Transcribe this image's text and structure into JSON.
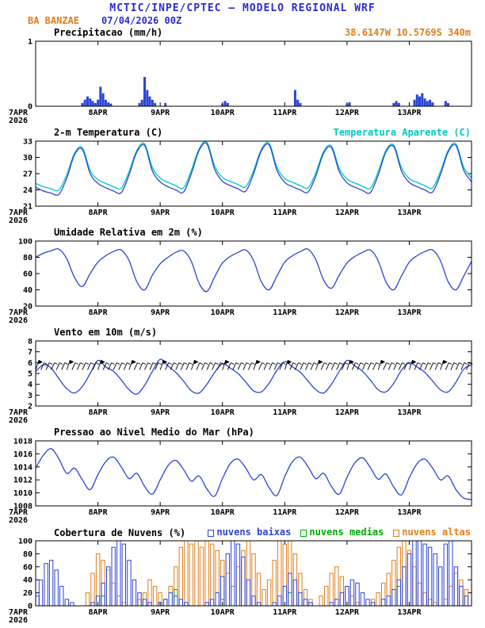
{
  "header": {
    "title": "MCTIC/INPE/CPTEC — MODELO REGIONAL WRF",
    "station": "BA BANZAE",
    "run": "07/04/2026 00Z",
    "coords": "38.6147W 10.5769S 340m"
  },
  "colors": {
    "title_blue": "#2b2bd0",
    "orange": "#e07d1a",
    "cyan": "#00c8c0",
    "line_blue": "#2b44d4",
    "green": "#00a800",
    "axis": "#000000"
  },
  "x_axis": {
    "hours_total": 168,
    "tick_hours": [
      0,
      24,
      48,
      72,
      96,
      120,
      144
    ],
    "tick_labels": [
      "7APR",
      "8APR",
      "9APR",
      "10APR",
      "11APR",
      "12APR",
      "13APR"
    ],
    "year_label": "2026"
  },
  "chart_data": [
    {
      "id": "precipitation",
      "type": "bar",
      "title": "Precipitacao (mm/h)",
      "ylim": [
        0,
        1
      ],
      "yticks": [
        0,
        1
      ],
      "series": [
        {
          "name": "precipitacao",
          "kind": "bars",
          "color": "line_blue",
          "points": [
            [
              18,
              0.05
            ],
            [
              19,
              0.1
            ],
            [
              20,
              0.15
            ],
            [
              21,
              0.12
            ],
            [
              22,
              0.08
            ],
            [
              23,
              0.05
            ],
            [
              24,
              0.1
            ],
            [
              25,
              0.3
            ],
            [
              26,
              0.2
            ],
            [
              27,
              0.1
            ],
            [
              28,
              0.06
            ],
            [
              29,
              0.04
            ],
            [
              40,
              0.05
            ],
            [
              41,
              0.1
            ],
            [
              42,
              0.45
            ],
            [
              43,
              0.25
            ],
            [
              44,
              0.15
            ],
            [
              45,
              0.1
            ],
            [
              46,
              0.05
            ],
            [
              50,
              0.05
            ],
            [
              72,
              0.04
            ],
            [
              73,
              0.08
            ],
            [
              74,
              0.05
            ],
            [
              100,
              0.25
            ],
            [
              101,
              0.1
            ],
            [
              102,
              0.05
            ],
            [
              120,
              0.04
            ],
            [
              121,
              0.06
            ],
            [
              138,
              0.05
            ],
            [
              139,
              0.08
            ],
            [
              140,
              0.05
            ],
            [
              146,
              0.1
            ],
            [
              147,
              0.18
            ],
            [
              148,
              0.15
            ],
            [
              149,
              0.2
            ],
            [
              150,
              0.12
            ],
            [
              151,
              0.08
            ],
            [
              152,
              0.1
            ],
            [
              153,
              0.06
            ],
            [
              158,
              0.08
            ],
            [
              159,
              0.05
            ]
          ]
        }
      ]
    },
    {
      "id": "temperature-2m",
      "type": "line",
      "title": "2-m Temperatura (C)",
      "right_label": "Temperatura Aparente (C)",
      "ylim": [
        21,
        33
      ],
      "yticks": [
        21,
        24,
        27,
        30,
        33
      ],
      "series": [
        {
          "name": "temperatura-aparente",
          "kind": "line",
          "color": "cyan",
          "dt": 3,
          "values": [
            25.2,
            24.6,
            24.2,
            24.0,
            26.8,
            30.8,
            31.8,
            27.6,
            25.9,
            25.2,
            24.6,
            24.3,
            27.4,
            31.3,
            32.5,
            28.1,
            26.2,
            25.4,
            24.8,
            24.4,
            27.6,
            31.6,
            32.8,
            28.4,
            26.3,
            25.6,
            25.0,
            24.6,
            27.6,
            31.5,
            32.6,
            28.2,
            26.1,
            25.4,
            24.8,
            24.4,
            27.2,
            31.1,
            32.1,
            28.0,
            26.0,
            25.3,
            24.7,
            24.3,
            27.3,
            31.3,
            32.3,
            28.1,
            26.1,
            25.4,
            24.8,
            24.4,
            27.4,
            31.3,
            32.5,
            28.2,
            26.2
          ]
        },
        {
          "name": "temperatura-2m",
          "kind": "line",
          "color": "line_blue",
          "dt": 3,
          "values": [
            24.5,
            23.8,
            23.4,
            23.2,
            26.2,
            30.5,
            31.5,
            27.0,
            25.2,
            24.4,
            23.8,
            23.5,
            26.8,
            31.0,
            32.2,
            27.5,
            25.5,
            24.6,
            24.0,
            23.6,
            27.0,
            31.3,
            32.5,
            27.8,
            25.6,
            24.8,
            24.2,
            23.8,
            27.0,
            31.2,
            32.3,
            27.6,
            25.4,
            24.6,
            24.0,
            23.6,
            26.6,
            30.8,
            31.8,
            27.4,
            25.3,
            24.5,
            23.9,
            23.5,
            26.7,
            31.0,
            32.0,
            27.5,
            25.4,
            24.6,
            24.0,
            23.6,
            26.8,
            31.0,
            32.2,
            27.6,
            25.5
          ]
        }
      ]
    },
    {
      "id": "relative-humidity-2m",
      "type": "line",
      "title": "Umidade Relativa em 2m (%)",
      "ylim": [
        20,
        100
      ],
      "yticks": [
        20,
        40,
        60,
        80,
        100
      ],
      "series": [
        {
          "name": "umidade-relativa",
          "kind": "line",
          "color": "line_blue",
          "dt": 3,
          "values": [
            80,
            85,
            88,
            90,
            78,
            55,
            44,
            60,
            74,
            82,
            87,
            89,
            76,
            50,
            40,
            58,
            72,
            80,
            86,
            88,
            75,
            48,
            38,
            56,
            73,
            81,
            86,
            89,
            76,
            50,
            40,
            57,
            74,
            82,
            87,
            90,
            77,
            52,
            42,
            58,
            73,
            81,
            86,
            89,
            76,
            50,
            40,
            57,
            74,
            82,
            87,
            89,
            76,
            50,
            40,
            57,
            75
          ]
        }
      ]
    },
    {
      "id": "wind-10m",
      "type": "line",
      "title": "Vento em 10m (m/s)",
      "ylim": [
        2,
        8
      ],
      "yticks": [
        2,
        3,
        4,
        5,
        6,
        7,
        8
      ],
      "barbs": {
        "level": 5.55,
        "dt": 2
      },
      "series": [
        {
          "name": "vento-10m",
          "kind": "line",
          "color": "line_blue",
          "dt": 3,
          "values": [
            5.2,
            5.8,
            5.5,
            4.5,
            3.6,
            3.2,
            3.8,
            5.0,
            6.2,
            5.6,
            5.2,
            4.4,
            3.5,
            3.1,
            3.9,
            5.2,
            6.3,
            5.7,
            5.1,
            4.3,
            3.4,
            3.2,
            4.0,
            5.1,
            5.9,
            5.5,
            5.0,
            4.2,
            3.4,
            3.3,
            4.1,
            5.3,
            6.1,
            5.6,
            5.1,
            4.3,
            3.5,
            3.2,
            4.0,
            5.2,
            6.2,
            5.7,
            5.2,
            4.4,
            3.5,
            3.3,
            4.1,
            5.3,
            6.0,
            5.6,
            5.1,
            4.3,
            3.5,
            3.3,
            4.2,
            5.4,
            5.8
          ]
        }
      ]
    },
    {
      "id": "mslp",
      "type": "line",
      "title": "Pressao ao Nivel Medio do Mar (hPa)",
      "ylim": [
        1008,
        1018
      ],
      "yticks": [
        1008,
        1010,
        1012,
        1014,
        1016,
        1018
      ],
      "series": [
        {
          "name": "pressao-nmm",
          "kind": "line",
          "color": "line_blue",
          "dt": 3,
          "values": [
            1013.8,
            1015.8,
            1016.8,
            1015.2,
            1013.0,
            1013.8,
            1012.0,
            1010.5,
            1012.8,
            1014.8,
            1015.5,
            1014.0,
            1012.2,
            1013.0,
            1011.0,
            1009.8,
            1012.0,
            1014.2,
            1015.0,
            1013.6,
            1011.8,
            1012.6,
            1010.6,
            1009.5,
            1012.2,
            1014.5,
            1015.2,
            1013.8,
            1012.0,
            1012.8,
            1010.8,
            1009.6,
            1012.5,
            1014.8,
            1015.5,
            1014.0,
            1012.2,
            1013.0,
            1011.0,
            1009.8,
            1012.4,
            1014.6,
            1015.4,
            1013.9,
            1012.1,
            1012.9,
            1010.9,
            1009.7,
            1012.3,
            1014.5,
            1015.2,
            1013.8,
            1012.0,
            1012.6,
            1010.5,
            1009.2,
            1009.0
          ]
        }
      ]
    },
    {
      "id": "cloud-cover",
      "type": "bar",
      "title": "Cobertura de Nuvens (%)",
      "ylim": [
        0,
        100
      ],
      "yticks": [
        0,
        20,
        40,
        60,
        80,
        100
      ],
      "legend": [
        {
          "label": "nuvens baixas",
          "color": "line_blue"
        },
        {
          "label": "nuvens medias",
          "color": "green"
        },
        {
          "label": "nuvens altas",
          "color": "orange"
        }
      ],
      "series": [
        {
          "name": "nuvens-altas",
          "kind": "outline-bars",
          "color": "orange",
          "dt": 2,
          "values": [
            0,
            0,
            0,
            0,
            0,
            0,
            0,
            0,
            0,
            0,
            20,
            50,
            80,
            70,
            55,
            35,
            15,
            5,
            0,
            0,
            10,
            20,
            40,
            30,
            20,
            10,
            30,
            60,
            90,
            100,
            95,
            100,
            90,
            100,
            95,
            85,
            70,
            50,
            30,
            60,
            85,
            100,
            80,
            50,
            25,
            40,
            70,
            100,
            95,
            100,
            80,
            50,
            25,
            10,
            0,
            15,
            30,
            50,
            60,
            45,
            30,
            15,
            5,
            0,
            0,
            10,
            20,
            35,
            50,
            70,
            90,
            100,
            85,
            60,
            35,
            20,
            10,
            5,
            0,
            10,
            30,
            50,
            40,
            25
          ]
        },
        {
          "name": "nuvens-medias",
          "kind": "outline-bars",
          "color": "green",
          "dt": 2,
          "values": [
            0,
            0,
            0,
            0,
            0,
            0,
            0,
            0,
            0,
            0,
            0,
            0,
            0,
            15,
            0,
            0,
            0,
            0,
            0,
            0,
            0,
            0,
            0,
            0,
            0,
            0,
            0,
            25,
            0,
            0,
            0,
            0,
            0,
            0,
            0,
            0,
            10,
            0,
            0,
            0,
            0,
            0,
            0,
            0,
            0,
            0,
            0,
            0,
            0,
            20,
            0,
            0,
            0,
            0,
            0,
            0,
            0,
            0,
            0,
            0,
            0,
            0,
            0,
            0,
            0,
            0,
            0,
            0,
            0,
            0,
            30,
            0,
            0,
            0,
            0,
            0,
            0,
            0,
            0,
            0,
            0,
            0,
            0,
            0
          ]
        },
        {
          "name": "nuvens-baixas",
          "kind": "outline-bars",
          "color": "line_blue",
          "dt": 2,
          "values": [
            15,
            40,
            65,
            70,
            55,
            30,
            10,
            5,
            0,
            0,
            0,
            5,
            15,
            35,
            60,
            90,
            100,
            95,
            70,
            40,
            20,
            10,
            5,
            0,
            5,
            10,
            20,
            15,
            10,
            5,
            0,
            0,
            0,
            5,
            10,
            20,
            45,
            80,
            100,
            95,
            75,
            40,
            15,
            5,
            0,
            0,
            5,
            15,
            30,
            50,
            40,
            20,
            10,
            5,
            0,
            0,
            0,
            5,
            10,
            20,
            30,
            40,
            35,
            20,
            10,
            5,
            0,
            10,
            15,
            25,
            40,
            60,
            80,
            100,
            100,
            95,
            90,
            80,
            60,
            95,
            100,
            60,
            30,
            15
          ]
        }
      ]
    }
  ]
}
